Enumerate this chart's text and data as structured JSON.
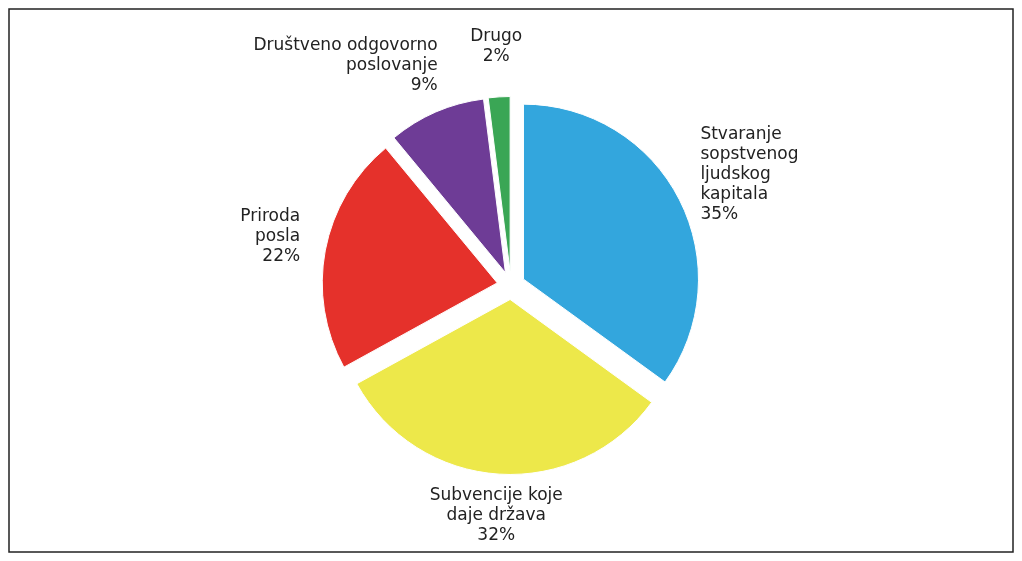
{
  "chart_data": {
    "type": "pie",
    "categories": [
      "Stvaranje sopstvenog ljudskog kapitala",
      "Subvencije koje daje država",
      "Priroda posla",
      "Društveno odgovorno poslovanje",
      "Drugo"
    ],
    "values": [
      35,
      32,
      22,
      9,
      2
    ],
    "colors": [
      "#33a6dd",
      "#ede84a",
      "#e5312b",
      "#6e3c96",
      "#3aa655"
    ],
    "value_labels": [
      "35%",
      "32%",
      "22%",
      "9%",
      "2%"
    ]
  }
}
